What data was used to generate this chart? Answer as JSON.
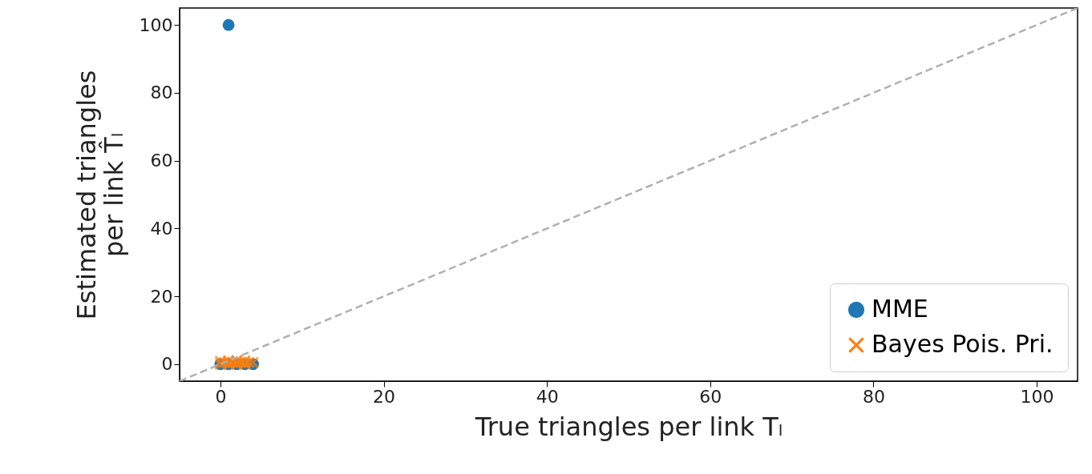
{
  "chart_data": {
    "type": "scatter",
    "xlabel": "True triangles per link Tₗ",
    "ylabel": "Estimated triangles\nper link T̂ₗ",
    "xlim": [
      -5,
      105
    ],
    "ylim": [
      -5,
      105
    ],
    "xticks": [
      0,
      20,
      40,
      60,
      80,
      100
    ],
    "yticks": [
      0,
      20,
      40,
      60,
      80,
      100
    ],
    "grid": false,
    "legend": "bottom right",
    "series": [
      {
        "name": "MME",
        "color": "#1f77b4",
        "marker": "circle",
        "x": [
          1,
          0,
          1,
          2,
          3,
          4
        ],
        "values": [
          100,
          0,
          0,
          0,
          0,
          0
        ]
      },
      {
        "name": "Bayes Pois. Pri.",
        "color": "#ff7f0e",
        "marker": "cross",
        "x": [
          0,
          0.5,
          1,
          1,
          1.5,
          2,
          2,
          2.5,
          3,
          3,
          3.5,
          4,
          0,
          1,
          2,
          3
        ],
        "values": [
          0,
          0.5,
          0,
          1,
          0.5,
          0,
          1,
          0.5,
          0,
          1,
          0.5,
          0.5,
          0.8,
          0.3,
          0.3,
          0.3
        ]
      },
      {
        "type": "line",
        "color": "#b0b0b0",
        "line_style": "dashed",
        "x": [
          -5,
          105
        ],
        "values": [
          -5,
          105
        ]
      }
    ]
  }
}
